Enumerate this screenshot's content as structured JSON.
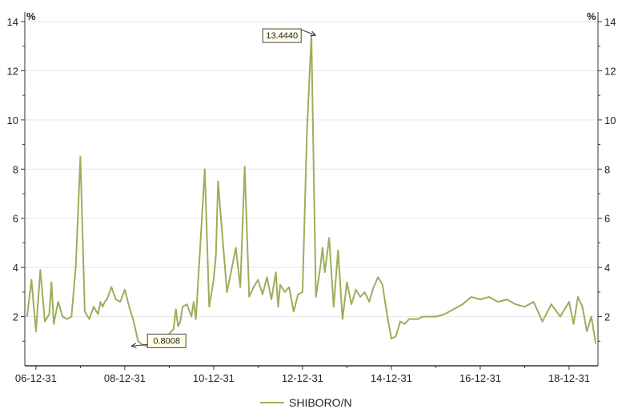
{
  "chart_data": {
    "type": "line",
    "ylim": [
      0,
      14
    ],
    "ytick_values": [
      2,
      4,
      6,
      8,
      10,
      12,
      14
    ],
    "yunit_left": "%",
    "yunit_right": "%",
    "xtick_labels": [
      "06-12-31",
      "08-12-31",
      "10-12-31",
      "12-12-31",
      "14-12-31",
      "16-12-31",
      "18-12-31"
    ],
    "grid": "horizontal",
    "legend_position": "bottom",
    "series": [
      {
        "name": "SHIBORO/N",
        "color": "#9aaf5a",
        "x": [
          2006.8,
          2006.9,
          2007.0,
          2007.1,
          2007.2,
          2007.3,
          2007.35,
          2007.4,
          2007.5,
          2007.6,
          2007.7,
          2007.8,
          2007.9,
          2008.0,
          2008.1,
          2008.2,
          2008.3,
          2008.4,
          2008.45,
          2008.5,
          2008.55,
          2008.6,
          2008.7,
          2008.8,
          2008.9,
          2009.0,
          2009.1,
          2009.2,
          2009.3,
          2009.4,
          2009.5,
          2009.6,
          2009.7,
          2009.8,
          2009.9,
          2010.0,
          2010.1,
          2010.15,
          2010.2,
          2010.25,
          2010.3,
          2010.4,
          2010.5,
          2010.55,
          2010.6,
          2010.7,
          2010.8,
          2010.9,
          2011.0,
          2011.05,
          2011.1,
          2011.2,
          2011.3,
          2011.4,
          2011.5,
          2011.6,
          2011.7,
          2011.8,
          2011.9,
          2012.0,
          2012.1,
          2012.2,
          2012.3,
          2012.4,
          2012.45,
          2012.5,
          2012.6,
          2012.7,
          2012.8,
          2012.9,
          2013.0,
          2013.1,
          2013.2,
          2013.3,
          2013.4,
          2013.45,
          2013.5,
          2013.6,
          2013.7,
          2013.8,
          2013.9,
          2014.0,
          2014.1,
          2014.2,
          2014.3,
          2014.4,
          2014.5,
          2014.6,
          2014.7,
          2014.8,
          2014.9,
          2015.0,
          2015.1,
          2015.2,
          2015.3,
          2015.4,
          2015.5,
          2015.6,
          2015.7,
          2015.8,
          2015.9,
          2016.0,
          2016.2,
          2016.4,
          2016.6,
          2016.8,
          2017.0,
          2017.2,
          2017.4,
          2017.6,
          2017.8,
          2018.0,
          2018.2,
          2018.4,
          2018.6,
          2018.8,
          2019.0,
          2019.1,
          2019.2,
          2019.3,
          2019.4,
          2019.5,
          2019.6
        ],
        "y": [
          2.0,
          3.5,
          1.4,
          3.9,
          1.8,
          2.1,
          3.4,
          1.7,
          2.6,
          2.0,
          1.9,
          2.0,
          4.1,
          8.5,
          2.2,
          1.9,
          2.4,
          2.1,
          2.6,
          2.4,
          2.6,
          2.7,
          3.2,
          2.7,
          2.6,
          3.1,
          2.4,
          1.8,
          1.0,
          0.85,
          0.8008,
          0.85,
          0.9,
          1.0,
          1.1,
          1.3,
          1.5,
          2.3,
          1.6,
          1.8,
          2.4,
          2.5,
          2.0,
          2.6,
          1.9,
          4.9,
          8.0,
          2.4,
          3.5,
          4.5,
          7.5,
          5.2,
          3.0,
          3.9,
          4.8,
          3.2,
          8.1,
          2.8,
          3.2,
          3.5,
          2.9,
          3.6,
          2.7,
          3.8,
          2.4,
          3.3,
          3.0,
          3.2,
          2.2,
          2.9,
          3.0,
          9.5,
          13.444,
          2.8,
          4.0,
          4.8,
          3.8,
          5.2,
          2.4,
          4.7,
          1.9,
          3.4,
          2.5,
          3.1,
          2.8,
          3.0,
          2.6,
          3.2,
          3.6,
          3.3,
          2.1,
          1.1,
          1.2,
          1.8,
          1.7,
          1.9,
          1.9,
          1.9,
          2.0,
          2.0,
          2.0,
          2.0,
          2.1,
          2.3,
          2.5,
          2.8,
          2.7,
          2.8,
          2.6,
          2.7,
          2.5,
          2.4,
          2.6,
          1.8,
          2.5,
          2.0,
          2.6,
          1.7,
          2.8,
          2.4,
          1.4,
          2.0,
          0.9
        ],
        "annotations": [
          {
            "label": "13.4440",
            "value": 13.444,
            "x": 2013.15
          },
          {
            "label": "0.8008",
            "value": 0.8008,
            "x": 2009.15
          }
        ]
      }
    ]
  }
}
